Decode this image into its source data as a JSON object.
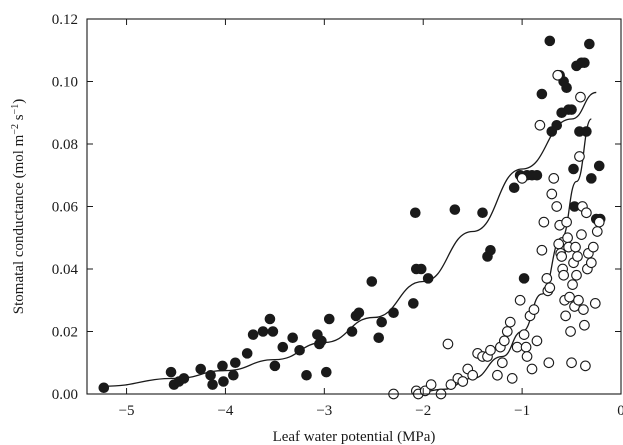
{
  "chart_data": {
    "type": "scatter",
    "title": "",
    "xlabel": "Leaf water potential (MPa)",
    "ylabel_parts": {
      "main": "Stomatal conductance (mol m",
      "sup1": "−2",
      "mid": " s",
      "sup2": "−1",
      "end": ")"
    },
    "xlim": [
      -5.4,
      0
    ],
    "ylim": [
      0,
      0.12
    ],
    "xticks": [
      -5,
      -4,
      -3,
      -2,
      -1,
      0
    ],
    "xtick_labels": [
      "−5",
      "−4",
      "−3",
      "−2",
      "−1",
      "0"
    ],
    "yticks": [
      0,
      0.02,
      0.04,
      0.06,
      0.08,
      0.1,
      0.12
    ],
    "ytick_labels": [
      "0.00",
      "0.02",
      "0.04",
      "0.06",
      "0.08",
      "0.10",
      "0.12"
    ],
    "grid": false,
    "legend": "none",
    "series": [
      {
        "marker": "filled-circle",
        "points": [
          [
            -5.23,
            0.002
          ],
          [
            -4.55,
            0.007
          ],
          [
            -4.52,
            0.003
          ],
          [
            -4.47,
            0.004
          ],
          [
            -4.42,
            0.005
          ],
          [
            -4.25,
            0.008
          ],
          [
            -4.15,
            0.006
          ],
          [
            -4.13,
            0.003
          ],
          [
            -4.03,
            0.009
          ],
          [
            -4.02,
            0.004
          ],
          [
            -3.92,
            0.006
          ],
          [
            -3.9,
            0.01
          ],
          [
            -3.78,
            0.013
          ],
          [
            -3.72,
            0.019
          ],
          [
            -3.62,
            0.02
          ],
          [
            -3.55,
            0.024
          ],
          [
            -3.52,
            0.02
          ],
          [
            -3.5,
            0.009
          ],
          [
            -3.42,
            0.015
          ],
          [
            -3.32,
            0.018
          ],
          [
            -3.25,
            0.014
          ],
          [
            -3.18,
            0.006
          ],
          [
            -3.07,
            0.019
          ],
          [
            -3.05,
            0.016
          ],
          [
            -3.03,
            0.017
          ],
          [
            -2.98,
            0.007
          ],
          [
            -2.95,
            0.024
          ],
          [
            -2.72,
            0.02
          ],
          [
            -2.68,
            0.025
          ],
          [
            -2.65,
            0.026
          ],
          [
            -2.52,
            0.036
          ],
          [
            -2.45,
            0.018
          ],
          [
            -2.42,
            0.023
          ],
          [
            -2.3,
            0.026
          ],
          [
            -2.1,
            0.029
          ],
          [
            -2.08,
            0.058
          ],
          [
            -2.07,
            0.04
          ],
          [
            -2.02,
            0.04
          ],
          [
            -1.95,
            0.037
          ],
          [
            -1.68,
            0.059
          ],
          [
            -1.4,
            0.058
          ],
          [
            -1.35,
            0.044
          ],
          [
            -1.32,
            0.046
          ],
          [
            -1.08,
            0.066
          ],
          [
            -1.02,
            0.07
          ],
          [
            -0.98,
            0.037
          ],
          [
            -0.95,
            0.07
          ],
          [
            -0.9,
            0.07
          ],
          [
            -0.85,
            0.07
          ],
          [
            -0.8,
            0.096
          ],
          [
            -0.72,
            0.113
          ],
          [
            -0.7,
            0.084
          ],
          [
            -0.65,
            0.086
          ],
          [
            -0.62,
            0.102
          ],
          [
            -0.6,
            0.09
          ],
          [
            -0.58,
            0.1
          ],
          [
            -0.55,
            0.098
          ],
          [
            -0.53,
            0.091
          ],
          [
            -0.5,
            0.091
          ],
          [
            -0.48,
            0.072
          ],
          [
            -0.47,
            0.06
          ],
          [
            -0.45,
            0.105
          ],
          [
            -0.42,
            0.084
          ],
          [
            -0.4,
            0.106
          ],
          [
            -0.37,
            0.106
          ],
          [
            -0.35,
            0.084
          ],
          [
            -0.32,
            0.112
          ],
          [
            -0.3,
            0.069
          ],
          [
            -0.25,
            0.056
          ],
          [
            -0.22,
            0.073
          ],
          [
            -0.21,
            0.056
          ]
        ]
      },
      {
        "marker": "open-circle",
        "points": [
          [
            -2.3,
            0.0
          ],
          [
            -2.07,
            0.001
          ],
          [
            -2.05,
            0.0
          ],
          [
            -1.98,
            0.001
          ],
          [
            -1.92,
            0.003
          ],
          [
            -1.82,
            0.0
          ],
          [
            -1.75,
            0.016
          ],
          [
            -1.72,
            0.003
          ],
          [
            -1.65,
            0.005
          ],
          [
            -1.6,
            0.004
          ],
          [
            -1.55,
            0.008
          ],
          [
            -1.5,
            0.006
          ],
          [
            -1.45,
            0.013
          ],
          [
            -1.4,
            0.012
          ],
          [
            -1.35,
            0.012
          ],
          [
            -1.32,
            0.014
          ],
          [
            -1.25,
            0.006
          ],
          [
            -1.22,
            0.015
          ],
          [
            -1.2,
            0.01
          ],
          [
            -1.18,
            0.017
          ],
          [
            -1.15,
            0.02
          ],
          [
            -1.12,
            0.023
          ],
          [
            -1.1,
            0.005
          ],
          [
            -1.05,
            0.015
          ],
          [
            -1.02,
            0.03
          ],
          [
            -1.0,
            0.069
          ],
          [
            -0.98,
            0.019
          ],
          [
            -0.96,
            0.015
          ],
          [
            -0.95,
            0.012
          ],
          [
            -0.92,
            0.025
          ],
          [
            -0.9,
            0.008
          ],
          [
            -0.88,
            0.027
          ],
          [
            -0.85,
            0.017
          ],
          [
            -0.82,
            0.086
          ],
          [
            -0.8,
            0.046
          ],
          [
            -0.78,
            0.055
          ],
          [
            -0.75,
            0.037
          ],
          [
            -0.74,
            0.033
          ],
          [
            -0.73,
            0.01
          ],
          [
            -0.72,
            0.034
          ],
          [
            -0.7,
            0.064
          ],
          [
            -0.68,
            0.069
          ],
          [
            -0.65,
            0.06
          ],
          [
            -0.64,
            0.102
          ],
          [
            -0.63,
            0.048
          ],
          [
            -0.62,
            0.054
          ],
          [
            -0.61,
            0.045
          ],
          [
            -0.6,
            0.044
          ],
          [
            -0.59,
            0.04
          ],
          [
            -0.58,
            0.038
          ],
          [
            -0.57,
            0.03
          ],
          [
            -0.56,
            0.025
          ],
          [
            -0.55,
            0.055
          ],
          [
            -0.54,
            0.05
          ],
          [
            -0.53,
            0.047
          ],
          [
            -0.52,
            0.031
          ],
          [
            -0.51,
            0.02
          ],
          [
            -0.5,
            0.01
          ],
          [
            -0.49,
            0.035
          ],
          [
            -0.48,
            0.042
          ],
          [
            -0.47,
            0.028
          ],
          [
            -0.46,
            0.047
          ],
          [
            -0.45,
            0.038
          ],
          [
            -0.44,
            0.044
          ],
          [
            -0.43,
            0.03
          ],
          [
            -0.42,
            0.076
          ],
          [
            -0.41,
            0.095
          ],
          [
            -0.4,
            0.051
          ],
          [
            -0.39,
            0.06
          ],
          [
            -0.38,
            0.027
          ],
          [
            -0.37,
            0.022
          ],
          [
            -0.36,
            0.009
          ],
          [
            -0.35,
            0.058
          ],
          [
            -0.34,
            0.04
          ],
          [
            -0.33,
            0.045
          ],
          [
            -0.3,
            0.042
          ],
          [
            -0.28,
            0.047
          ],
          [
            -0.26,
            0.029
          ],
          [
            -0.24,
            0.052
          ],
          [
            -0.22,
            0.055
          ]
        ]
      }
    ],
    "fit_curves": [
      {
        "line": "solid",
        "points": [
          [
            -5.23,
            0.0025
          ],
          [
            -4.5,
            0.005
          ],
          [
            -4.0,
            0.0075
          ],
          [
            -3.5,
            0.011
          ],
          [
            -3.0,
            0.0165
          ],
          [
            -2.5,
            0.0245
          ],
          [
            -2.0,
            0.036
          ],
          [
            -1.5,
            0.052
          ],
          [
            -1.0,
            0.072
          ],
          [
            -0.5,
            0.088
          ],
          [
            -0.25,
            0.0965
          ]
        ]
      },
      {
        "line": "solid",
        "points": [
          [
            -2.1,
            0.0
          ],
          [
            -1.8,
            0.0015
          ],
          [
            -1.5,
            0.005
          ],
          [
            -1.2,
            0.012
          ],
          [
            -1.0,
            0.02
          ],
          [
            -0.8,
            0.032
          ],
          [
            -0.6,
            0.05
          ],
          [
            -0.45,
            0.068
          ],
          [
            -0.3,
            0.088
          ]
        ]
      }
    ]
  }
}
